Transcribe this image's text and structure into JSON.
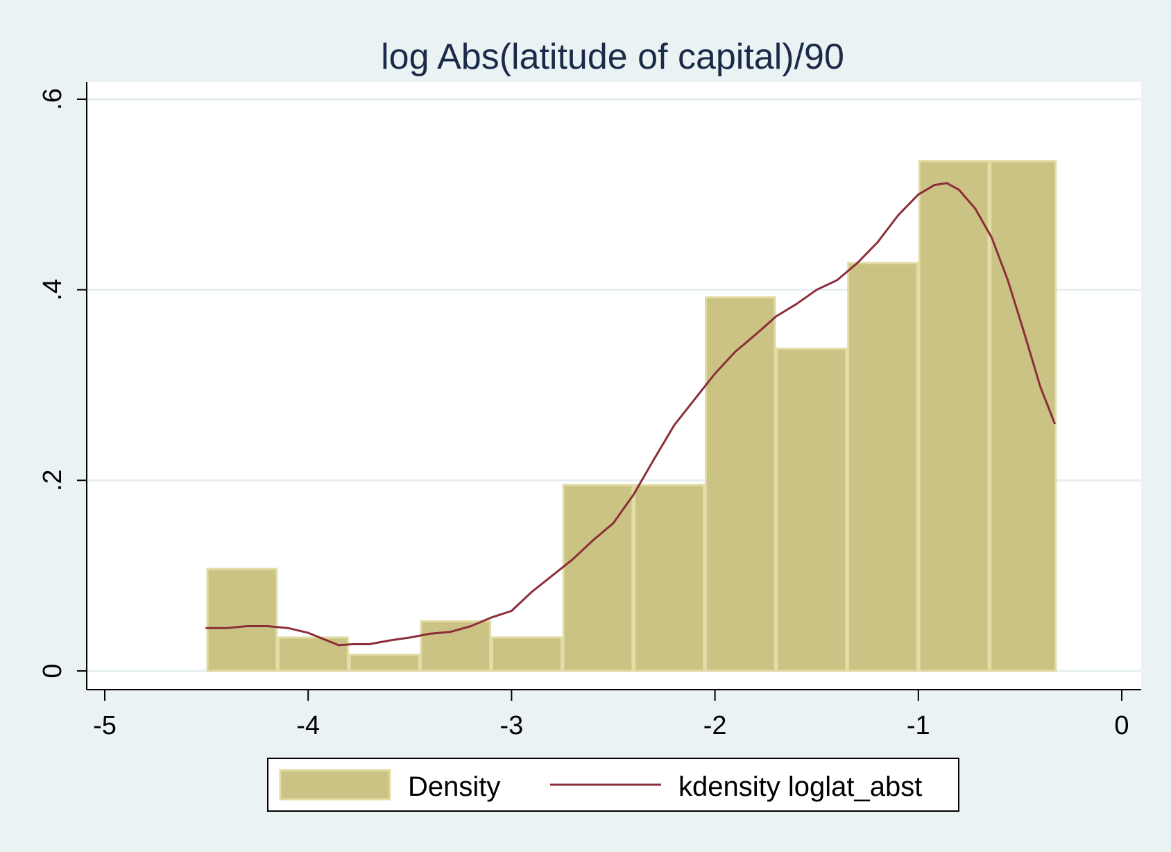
{
  "chart_data": {
    "type": "bar",
    "title": "log Abs(latitude of capital)/90",
    "xlabel": "",
    "ylabel": "",
    "xlim": [
      -5,
      0
    ],
    "ylim": [
      0,
      0.6
    ],
    "grid": true,
    "legend_position": "bottom",
    "x_ticks": [
      {
        "value": -5,
        "label": "-5"
      },
      {
        "value": -4,
        "label": "-4"
      },
      {
        "value": -3,
        "label": "-3"
      },
      {
        "value": -2,
        "label": "-2"
      },
      {
        "value": -1,
        "label": "-1"
      },
      {
        "value": 0,
        "label": "0"
      }
    ],
    "y_ticks": [
      {
        "value": 0,
        "label": "0"
      },
      {
        "value": 0.2,
        "label": ".2"
      },
      {
        "value": 0.4,
        "label": ".4"
      },
      {
        "value": 0.6,
        "label": ".6"
      }
    ],
    "series": [
      {
        "name": "Density",
        "kind": "histogram",
        "color": "#cbc383",
        "edge_color": "#e1dba4",
        "bins": [
          {
            "x0": -4.5,
            "x1": -4.15,
            "value": 0.107
          },
          {
            "x0": -4.15,
            "x1": -3.8,
            "value": 0.035
          },
          {
            "x0": -3.8,
            "x1": -3.45,
            "value": 0.017
          },
          {
            "x0": -3.45,
            "x1": -3.1,
            "value": 0.052
          },
          {
            "x0": -3.1,
            "x1": -2.75,
            "value": 0.035
          },
          {
            "x0": -2.75,
            "x1": -2.4,
            "value": 0.195
          },
          {
            "x0": -2.4,
            "x1": -2.05,
            "value": 0.195
          },
          {
            "x0": -2.05,
            "x1": -1.7,
            "value": 0.392
          },
          {
            "x0": -1.7,
            "x1": -1.35,
            "value": 0.338
          },
          {
            "x0": -1.35,
            "x1": -1.0,
            "value": 0.428
          },
          {
            "x0": -1.0,
            "x1": -0.65,
            "value": 0.535
          },
          {
            "x0": -0.65,
            "x1": -0.32,
            "value": 0.535
          }
        ]
      },
      {
        "name": "kdensity loglat_abst",
        "kind": "line",
        "color": "#8c2e3a",
        "points": [
          [
            -4.5,
            0.045
          ],
          [
            -4.4,
            0.045
          ],
          [
            -4.3,
            0.047
          ],
          [
            -4.2,
            0.047
          ],
          [
            -4.1,
            0.045
          ],
          [
            -4.0,
            0.04
          ],
          [
            -3.92,
            0.033
          ],
          [
            -3.85,
            0.027
          ],
          [
            -3.78,
            0.028
          ],
          [
            -3.7,
            0.028
          ],
          [
            -3.6,
            0.032
          ],
          [
            -3.5,
            0.035
          ],
          [
            -3.4,
            0.039
          ],
          [
            -3.3,
            0.041
          ],
          [
            -3.2,
            0.047
          ],
          [
            -3.1,
            0.056
          ],
          [
            -3.0,
            0.063
          ],
          [
            -2.9,
            0.083
          ],
          [
            -2.8,
            0.1
          ],
          [
            -2.7,
            0.117
          ],
          [
            -2.6,
            0.137
          ],
          [
            -2.5,
            0.155
          ],
          [
            -2.4,
            0.185
          ],
          [
            -2.3,
            0.222
          ],
          [
            -2.2,
            0.258
          ],
          [
            -2.1,
            0.285
          ],
          [
            -2.0,
            0.312
          ],
          [
            -1.9,
            0.335
          ],
          [
            -1.8,
            0.353
          ],
          [
            -1.7,
            0.372
          ],
          [
            -1.6,
            0.385
          ],
          [
            -1.5,
            0.4
          ],
          [
            -1.4,
            0.41
          ],
          [
            -1.3,
            0.428
          ],
          [
            -1.2,
            0.45
          ],
          [
            -1.1,
            0.478
          ],
          [
            -1.0,
            0.5
          ],
          [
            -0.92,
            0.51
          ],
          [
            -0.86,
            0.512
          ],
          [
            -0.8,
            0.505
          ],
          [
            -0.72,
            0.485
          ],
          [
            -0.64,
            0.455
          ],
          [
            -0.56,
            0.41
          ],
          [
            -0.48,
            0.355
          ],
          [
            -0.4,
            0.298
          ],
          [
            -0.33,
            0.26
          ]
        ]
      }
    ]
  }
}
